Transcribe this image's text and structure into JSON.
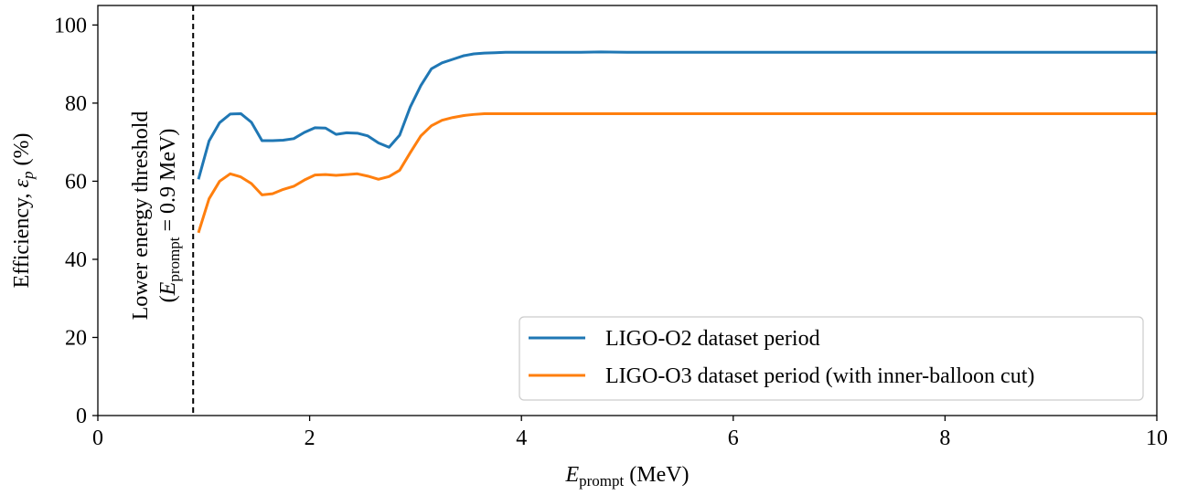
{
  "chart_data": {
    "type": "line",
    "xlabel": "E_prompt (MeV)",
    "xlabel_parts": {
      "symbol": "E",
      "subscript": "prompt",
      "unit": " (MeV)"
    },
    "ylabel": "Efficiency, ε_p (%)",
    "ylabel_parts": {
      "text": "Efficiency, ",
      "symbol": "ε",
      "subscript": "p",
      "unit": " (%)"
    },
    "xlim": [
      0,
      10
    ],
    "ylim": [
      0,
      105
    ],
    "xticks": [
      0,
      2,
      4,
      6,
      8,
      10
    ],
    "yticks": [
      0,
      20,
      40,
      60,
      80,
      100
    ],
    "grid": false,
    "legend_position": "lower-right",
    "series": [
      {
        "name": "LIGO-O2 dataset period",
        "color": "#1f77b4",
        "x": [
          0.95,
          1.05,
          1.15,
          1.25,
          1.35,
          1.45,
          1.55,
          1.65,
          1.75,
          1.85,
          1.95,
          2.05,
          2.15,
          2.25,
          2.35,
          2.45,
          2.55,
          2.65,
          2.75,
          2.85,
          2.95,
          3.05,
          3.15,
          3.25,
          3.35,
          3.45,
          3.55,
          3.65,
          3.75,
          3.85,
          3.95,
          4.2,
          4.5,
          4.75,
          5.0,
          5.5,
          6.0,
          6.5,
          7.0,
          7.5,
          8.0,
          8.5,
          9.0,
          9.5,
          10.0
        ],
        "y": [
          60.5,
          70.3,
          75.0,
          77.2,
          77.3,
          75.1,
          70.4,
          70.4,
          70.5,
          70.9,
          72.5,
          73.7,
          73.6,
          72.0,
          72.4,
          72.3,
          71.6,
          69.8,
          68.7,
          71.8,
          79.0,
          84.5,
          88.8,
          90.3,
          91.2,
          92.1,
          92.6,
          92.8,
          92.9,
          93.0,
          93.0,
          93.0,
          93.0,
          93.1,
          93.0,
          93.0,
          93.0,
          93.0,
          93.0,
          93.0,
          93.0,
          93.0,
          93.0,
          93.0,
          93.0
        ]
      },
      {
        "name": "LIGO-O3 dataset period (with inner-balloon cut)",
        "color": "#ff7f0e",
        "x": [
          0.95,
          1.05,
          1.15,
          1.25,
          1.35,
          1.45,
          1.55,
          1.65,
          1.75,
          1.85,
          1.95,
          2.05,
          2.15,
          2.25,
          2.35,
          2.45,
          2.55,
          2.65,
          2.75,
          2.85,
          2.95,
          3.05,
          3.15,
          3.25,
          3.35,
          3.45,
          3.55,
          3.65,
          3.75,
          3.85,
          3.95,
          4.2,
          4.5,
          5.0,
          5.5,
          6.0,
          6.5,
          7.0,
          7.5,
          8.0,
          8.5,
          9.0,
          9.5,
          10.0
        ],
        "y": [
          46.8,
          55.5,
          60.0,
          61.9,
          61.1,
          59.4,
          56.5,
          56.8,
          57.9,
          58.7,
          60.3,
          61.6,
          61.7,
          61.5,
          61.7,
          61.9,
          61.3,
          60.5,
          61.2,
          62.8,
          67.3,
          71.6,
          74.2,
          75.6,
          76.3,
          76.8,
          77.1,
          77.3,
          77.3,
          77.3,
          77.3,
          77.3,
          77.3,
          77.3,
          77.3,
          77.3,
          77.3,
          77.3,
          77.3,
          77.3,
          77.3,
          77.3,
          77.3,
          77.3
        ]
      }
    ],
    "threshold_line": {
      "x": 0.9,
      "style": "dashed",
      "color": "#000000",
      "label_line1": "Lower energy threshold",
      "label_line2_parts": {
        "open": "(",
        "symbol": "E",
        "subscript": "prompt",
        "rest": " = 0.9 MeV)"
      }
    }
  }
}
